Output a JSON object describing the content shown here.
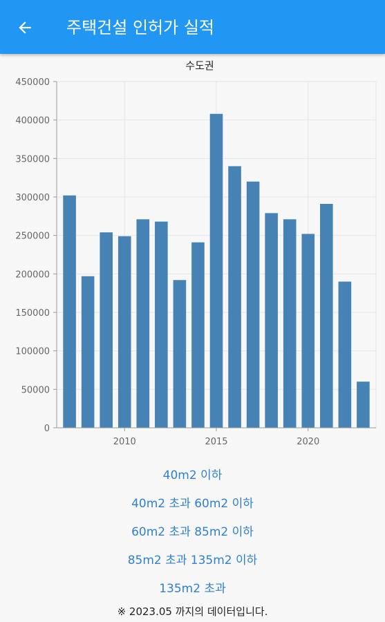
{
  "header": {
    "title": "주택건설 인허가 실적",
    "back_icon": "arrow-left-icon"
  },
  "colors": {
    "appbar": "#2196f3",
    "bar": "#4682b4",
    "link": "#2f80d1"
  },
  "chart_data": {
    "type": "bar",
    "title": "수도권",
    "x": [
      2007,
      2008,
      2009,
      2010,
      2011,
      2012,
      2013,
      2014,
      2015,
      2016,
      2017,
      2018,
      2019,
      2020,
      2021,
      2022,
      2023
    ],
    "values": [
      302000,
      197000,
      254000,
      249000,
      271000,
      268000,
      192000,
      241000,
      408000,
      340000,
      320000,
      279000,
      271000,
      252000,
      291000,
      190000,
      60000
    ],
    "ylim": [
      0,
      450000
    ],
    "yticks": [
      "0",
      "50000",
      "100000",
      "150000",
      "200000",
      "250000",
      "300000",
      "350000",
      "400000",
      "450000"
    ],
    "xticks": [
      "2010",
      "2015",
      "2020"
    ],
    "grid": true
  },
  "options": [
    "40m2 이하",
    "40m2 초과 60m2 이하",
    "60m2 초과 85m2 이하",
    "85m2 초과 135m2 이하",
    "135m2 초과"
  ],
  "footnote": "※ 2023.05 까지의 데이터입니다."
}
